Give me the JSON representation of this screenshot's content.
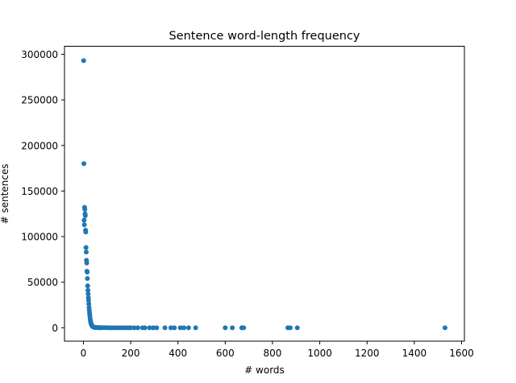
{
  "chart_data": {
    "type": "scatter",
    "title": "Sentence word-length frequency",
    "xlabel": "# words",
    "ylabel": "# sentences",
    "xlim": [
      -80,
      1612
    ],
    "ylim": [
      -14700,
      308800
    ],
    "xticks": [
      0,
      200,
      400,
      600,
      800,
      1000,
      1200,
      1400,
      1600
    ],
    "xtick_labels": [
      "0",
      "200",
      "400",
      "600",
      "800",
      "1000",
      "1200",
      "1400",
      "1600"
    ],
    "yticks": [
      0,
      50000,
      100000,
      150000,
      200000,
      250000,
      300000
    ],
    "ytick_labels": [
      "0",
      "50000",
      "100000",
      "150000",
      "200000",
      "250000",
      "300000"
    ],
    "grid": false,
    "marker_color": "#1f77b4",
    "series": [
      {
        "name": "sentences",
        "x": [
          1,
          2,
          3,
          4,
          5,
          6,
          7,
          8,
          9,
          10,
          11,
          12,
          13,
          14,
          15,
          16,
          17,
          18,
          19,
          20,
          21,
          22,
          23,
          24,
          25,
          26,
          27,
          28,
          29,
          30,
          31,
          32,
          33,
          34,
          35,
          36,
          37,
          38,
          39,
          40,
          42,
          44,
          46,
          48,
          50,
          53,
          56,
          60,
          65,
          70,
          75,
          80,
          90,
          100,
          110,
          120,
          130,
          140,
          150,
          160,
          170,
          180,
          190,
          200,
          215,
          230,
          250,
          260,
          280,
          295,
          310,
          345,
          370,
          385,
          410,
          425,
          445,
          475,
          600,
          630,
          670,
          678,
          865,
          875,
          905,
          1530
        ],
        "y": [
          293000,
          180000,
          118000,
          113000,
          132000,
          130000,
          125000,
          123000,
          107000,
          105000,
          88000,
          83000,
          74000,
          71000,
          62000,
          61000,
          54000,
          46000,
          41000,
          37000,
          33000,
          30000,
          26000,
          22000,
          19000,
          16000,
          13500,
          11000,
          9000,
          7500,
          6000,
          5000,
          4200,
          3500,
          2900,
          2400,
          2000,
          1700,
          1400,
          1200,
          900,
          700,
          550,
          450,
          350,
          280,
          220,
          170,
          130,
          100,
          80,
          60,
          40,
          30,
          20,
          15,
          12,
          10,
          8,
          6,
          5,
          4,
          3,
          3,
          2,
          2,
          2,
          1,
          1,
          1,
          1,
          1,
          1,
          1,
          1,
          1,
          1,
          1,
          1,
          1,
          1,
          1,
          1,
          1,
          1,
          1
        ]
      }
    ]
  }
}
